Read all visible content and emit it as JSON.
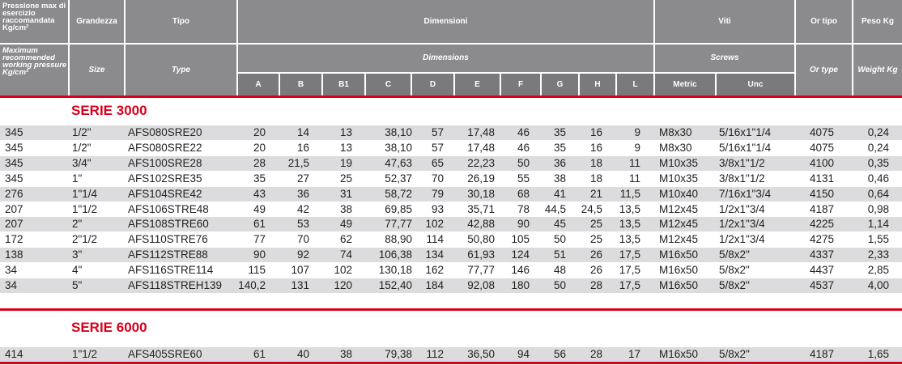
{
  "header": {
    "pressure_it": "Pressione max di esercizio raccomandata Kg/cm²",
    "pressure_en": "Maximum recommended working pressure Kg/cm²",
    "size_it": "Grandezza",
    "size_en": "Size",
    "type_it": "Tipo",
    "type_en": "Type",
    "dims_it": "Dimensioni",
    "dims_en": "Dimensions",
    "screws_it": "Viti",
    "screws_en": "Screws",
    "ortype_it": "Or tipo",
    "ortype_en": "Or type",
    "weight_it": "Peso Kg",
    "weight_en": "Weight Kg",
    "dim_cols": [
      "A",
      "B",
      "B1",
      "C",
      "D",
      "E",
      "F",
      "G",
      "H",
      "L"
    ],
    "screw_cols": [
      "Metric",
      "Unc"
    ]
  },
  "sections": [
    {
      "title": "SERIE 3000",
      "rows": [
        [
          "345",
          "1/2\"",
          "AFS080SRE20",
          "20",
          "14",
          "13",
          "38,10",
          "57",
          "17,48",
          "46",
          "35",
          "16",
          "9",
          "M8x30",
          "5/16x1\"1/4",
          "4075",
          "0,24"
        ],
        [
          "345",
          "1/2\"",
          "AFS080SRE22",
          "20",
          "16",
          "13",
          "38,10",
          "57",
          "17,48",
          "46",
          "35",
          "16",
          "9",
          "M8x30",
          "5/16x1\"1/4",
          "4075",
          "0,24"
        ],
        [
          "345",
          "3/4\"",
          "AFS100SRE28",
          "28",
          "21,5",
          "19",
          "47,63",
          "65",
          "22,23",
          "50",
          "36",
          "18",
          "11",
          "M10x35",
          "3/8x1\"1/2",
          "4100",
          "0,35"
        ],
        [
          "345",
          "1\"",
          "AFS102SRE35",
          "35",
          "27",
          "25",
          "52,37",
          "70",
          "26,19",
          "55",
          "38",
          "18",
          "11",
          "M10x35",
          "3/8x1\"1/2",
          "4131",
          "0,46"
        ],
        [
          "276",
          "1\"1/4",
          "AFS104SRE42",
          "43",
          "36",
          "31",
          "58,72",
          "79",
          "30,18",
          "68",
          "41",
          "21",
          "11,5",
          "M10x40",
          "7/16x1\"3/4",
          "4150",
          "0,64"
        ],
        [
          "207",
          "1\"1/2",
          "AFS106STRE48",
          "49",
          "42",
          "38",
          "69,85",
          "93",
          "35,71",
          "78",
          "44,5",
          "24,5",
          "13,5",
          "M12x45",
          "1/2x1\"3/4",
          "4187",
          "0,98"
        ],
        [
          "207",
          "2\"",
          "AFS108STRE60",
          "61",
          "53",
          "49",
          "77,77",
          "102",
          "42,88",
          "90",
          "45",
          "25",
          "13,5",
          "M12x45",
          "1/2x1\"3/4",
          "4225",
          "1,14"
        ],
        [
          "172",
          "2\"1/2",
          "AFS110STRE76",
          "77",
          "70",
          "62",
          "88,90",
          "114",
          "50,80",
          "105",
          "50",
          "25",
          "13,5",
          "M12x45",
          "1/2x1\"3/4",
          "4275",
          "1,55"
        ],
        [
          "138",
          "3\"",
          "AFS112STRE88",
          "90",
          "92",
          "74",
          "106,38",
          "134",
          "61,93",
          "124",
          "51",
          "26",
          "17,5",
          "M16x50",
          "5/8x2\"",
          "4337",
          "2,33"
        ],
        [
          "34",
          "4\"",
          "AFS116STRE114",
          "115",
          "107",
          "102",
          "130,18",
          "162",
          "77,77",
          "146",
          "48",
          "26",
          "17,5",
          "M16x50",
          "5/8x2\"",
          "4437",
          "2,85"
        ],
        [
          "34",
          "5\"",
          "AFS118STREH139",
          "140,2",
          "131",
          "120",
          "152,40",
          "184",
          "92,08",
          "180",
          "50",
          "28",
          "17,5",
          "M16x50",
          "5/8x2\"",
          "4537",
          "4,00"
        ]
      ]
    },
    {
      "title": "SERIE 6000",
      "rows": [
        [
          "414",
          "1\"1/2",
          "AFS405SRE60",
          "61",
          "40",
          "38",
          "79,38",
          "112",
          "36,50",
          "94",
          "56",
          "28",
          "17",
          "M16x50",
          "5/8x2\"",
          "4187",
          "1,65"
        ]
      ]
    }
  ]
}
